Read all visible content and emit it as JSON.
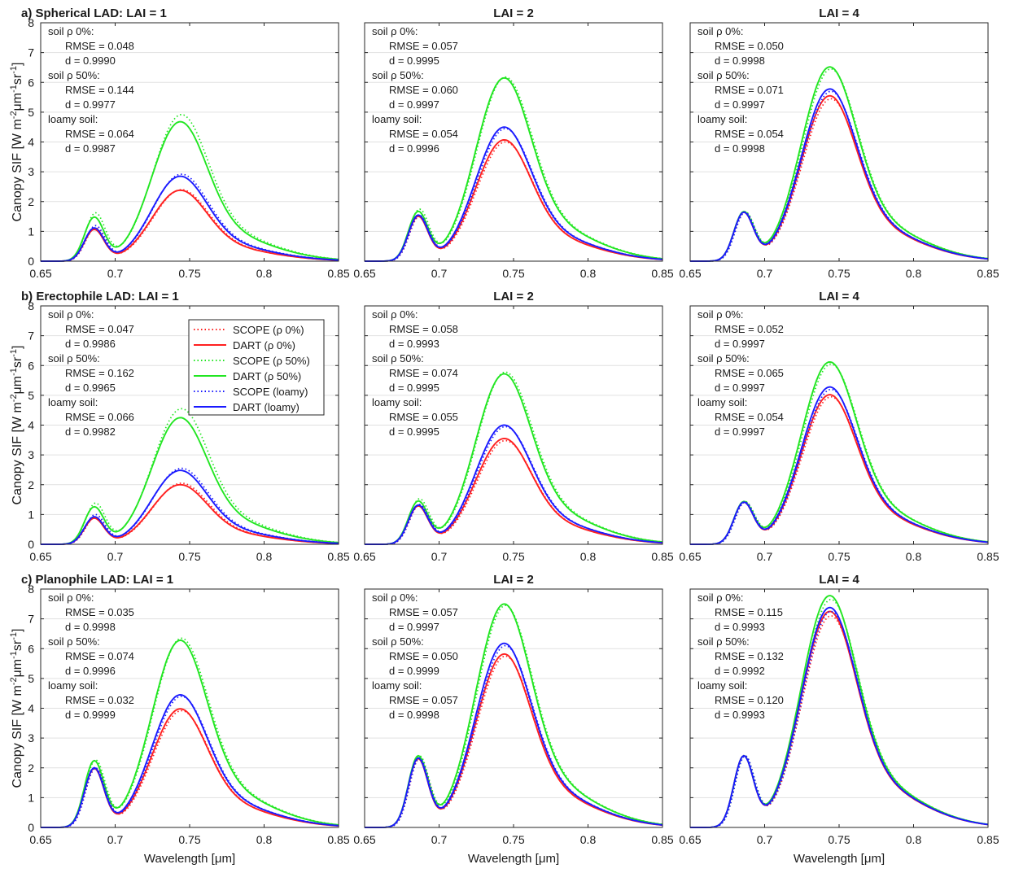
{
  "figure": {
    "x_axis_label": "Wavelength [μm]",
    "y_axis_label_parts": [
      "Canopy SIF [W m",
      "-2",
      "μm",
      "-1",
      "sr",
      "-1",
      "]"
    ],
    "x_ticks": [
      "0.65",
      "0.7",
      "0.75",
      "0.8",
      "0.85"
    ],
    "y_ticks": [
      "0",
      "1",
      "2",
      "3",
      "4",
      "5",
      "6",
      "7",
      "8"
    ],
    "colors": {
      "rho0": "#ff2020",
      "rho50": "#22e622",
      "loamy": "#1a1aff"
    }
  },
  "legend": {
    "entries": [
      {
        "label": "SCOPE (ρ 0%)",
        "series": "rho0",
        "style": "dotted"
      },
      {
        "label": "DART (ρ 0%)",
        "series": "rho0",
        "style": "solid"
      },
      {
        "label": "SCOPE (ρ 50%)",
        "series": "rho50",
        "style": "dotted"
      },
      {
        "label": "DART (ρ 50%)",
        "series": "rho50",
        "style": "solid"
      },
      {
        "label": "SCOPE (loamy)",
        "series": "loamy",
        "style": "dotted"
      },
      {
        "label": "DART (loamy)",
        "series": "loamy",
        "style": "solid"
      }
    ]
  },
  "chart_data": [
    {
      "type": "line",
      "title": "a) Spherical LAD: LAI = 1",
      "xlim": [
        0.65,
        0.85
      ],
      "ylim": [
        0,
        8
      ],
      "stats": [
        {
          "label": "soil ρ 0%:",
          "rmse": "RMSE = 0.048",
          "d": "d = 0.9990"
        },
        {
          "label": "soil ρ 50%:",
          "rmse": "RMSE = 0.144",
          "d": "d = 0.9977"
        },
        {
          "label": "loamy soil:",
          "rmse": "RMSE = 0.064",
          "d": "d = 0.9987"
        }
      ],
      "series": [
        {
          "name": "DART (ρ 0%)",
          "key": "rho0",
          "model": "DART",
          "peak1": 1.12,
          "peak2": 2.38
        },
        {
          "name": "SCOPE (ρ 0%)",
          "key": "rho0",
          "model": "SCOPE",
          "peak1": 1.17,
          "peak2": 2.4
        },
        {
          "name": "DART (ρ 50%)",
          "key": "rho50",
          "model": "DART",
          "peak1": 1.55,
          "peak2": 4.68
        },
        {
          "name": "SCOPE (ρ 50%)",
          "key": "rho50",
          "model": "SCOPE",
          "peak1": 1.7,
          "peak2": 4.92
        },
        {
          "name": "DART (loamy)",
          "key": "loamy",
          "model": "DART",
          "peak1": 1.17,
          "peak2": 2.85
        },
        {
          "name": "SCOPE (loamy)",
          "key": "loamy",
          "model": "SCOPE",
          "peak1": 1.25,
          "peak2": 2.92
        }
      ]
    },
    {
      "type": "line",
      "title": "LAI = 2",
      "xlim": [
        0.65,
        0.85
      ],
      "ylim": [
        0,
        8
      ],
      "stats": [
        {
          "label": "soil ρ 0%:",
          "rmse": "RMSE = 0.057",
          "d": "d = 0.9995"
        },
        {
          "label": "soil ρ 50%:",
          "rmse": "RMSE = 0.060",
          "d": "d = 0.9997"
        },
        {
          "label": "loamy soil:",
          "rmse": "RMSE = 0.054",
          "d": "d = 0.9996"
        }
      ],
      "series": [
        {
          "name": "DART (ρ 0%)",
          "key": "rho0",
          "model": "DART",
          "peak1": 1.58,
          "peak2": 4.07
        },
        {
          "name": "SCOPE (ρ 0%)",
          "key": "rho0",
          "model": "SCOPE",
          "peak1": 1.58,
          "peak2": 4.0
        },
        {
          "name": "DART (ρ 50%)",
          "key": "rho50",
          "model": "DART",
          "peak1": 1.75,
          "peak2": 6.15
        },
        {
          "name": "SCOPE (ρ 50%)",
          "key": "rho50",
          "model": "SCOPE",
          "peak1": 1.83,
          "peak2": 6.18
        },
        {
          "name": "DART (loamy)",
          "key": "loamy",
          "model": "DART",
          "peak1": 1.62,
          "peak2": 4.5
        },
        {
          "name": "SCOPE (loamy)",
          "key": "loamy",
          "model": "SCOPE",
          "peak1": 1.62,
          "peak2": 4.45
        }
      ]
    },
    {
      "type": "line",
      "title": "LAI = 4",
      "xlim": [
        0.65,
        0.85
      ],
      "ylim": [
        0,
        8
      ],
      "stats": [
        {
          "label": "soil ρ 0%:",
          "rmse": "RMSE = 0.050",
          "d": "d = 0.9998"
        },
        {
          "label": "soil ρ 50%:",
          "rmse": "RMSE = 0.071",
          "d": "d = 0.9997"
        },
        {
          "label": "loamy soil:",
          "rmse": "RMSE = 0.054",
          "d": "d = 0.9998"
        }
      ],
      "series": [
        {
          "name": "DART (ρ 0%)",
          "key": "rho0",
          "model": "DART",
          "peak1": 1.72,
          "peak2": 5.55
        },
        {
          "name": "SCOPE (ρ 0%)",
          "key": "rho0",
          "model": "SCOPE",
          "peak1": 1.72,
          "peak2": 5.45
        },
        {
          "name": "DART (ρ 50%)",
          "key": "rho50",
          "model": "DART",
          "peak1": 1.74,
          "peak2": 6.52
        },
        {
          "name": "SCOPE (ρ 50%)",
          "key": "rho50",
          "model": "SCOPE",
          "peak1": 1.74,
          "peak2": 6.45
        },
        {
          "name": "DART (loamy)",
          "key": "loamy",
          "model": "DART",
          "peak1": 1.72,
          "peak2": 5.78
        },
        {
          "name": "SCOPE (loamy)",
          "key": "loamy",
          "model": "SCOPE",
          "peak1": 1.72,
          "peak2": 5.7
        }
      ]
    },
    {
      "type": "line",
      "title": "b) Erectophile LAD: LAI = 1",
      "xlim": [
        0.65,
        0.85
      ],
      "ylim": [
        0,
        8
      ],
      "stats": [
        {
          "label": "soil ρ 0%:",
          "rmse": "RMSE = 0.047",
          "d": "d = 0.9986"
        },
        {
          "label": "soil ρ 50%:",
          "rmse": "RMSE = 0.162",
          "d": "d = 0.9965"
        },
        {
          "label": "loamy soil:",
          "rmse": "RMSE = 0.066",
          "d": "d = 0.9982"
        }
      ],
      "series": [
        {
          "name": "DART (ρ 0%)",
          "key": "rho0",
          "model": "DART",
          "peak1": 0.92,
          "peak2": 2.0
        },
        {
          "name": "SCOPE (ρ 0%)",
          "key": "rho0",
          "model": "SCOPE",
          "peak1": 0.96,
          "peak2": 2.05
        },
        {
          "name": "DART (ρ 50%)",
          "key": "rho50",
          "model": "DART",
          "peak1": 1.32,
          "peak2": 4.25
        },
        {
          "name": "SCOPE (ρ 50%)",
          "key": "rho50",
          "model": "SCOPE",
          "peak1": 1.45,
          "peak2": 4.55
        },
        {
          "name": "DART (loamy)",
          "key": "loamy",
          "model": "DART",
          "peak1": 0.97,
          "peak2": 2.48
        },
        {
          "name": "SCOPE (loamy)",
          "key": "loamy",
          "model": "SCOPE",
          "peak1": 1.05,
          "peak2": 2.55
        }
      ]
    },
    {
      "type": "line",
      "title": "LAI = 2",
      "xlim": [
        0.65,
        0.85
      ],
      "ylim": [
        0,
        8
      ],
      "stats": [
        {
          "label": "soil ρ 0%:",
          "rmse": "RMSE = 0.058",
          "d": "d = 0.9993"
        },
        {
          "label": "soil ρ 50%:",
          "rmse": "RMSE = 0.074",
          "d": "d = 0.9995"
        },
        {
          "label": "loamy soil:",
          "rmse": "RMSE = 0.055",
          "d": "d = 0.9995"
        }
      ],
      "series": [
        {
          "name": "DART (ρ 0%)",
          "key": "rho0",
          "model": "DART",
          "peak1": 1.35,
          "peak2": 3.55
        },
        {
          "name": "SCOPE (ρ 0%)",
          "key": "rho0",
          "model": "SCOPE",
          "peak1": 1.38,
          "peak2": 3.48
        },
        {
          "name": "DART (ρ 50%)",
          "key": "rho50",
          "model": "DART",
          "peak1": 1.52,
          "peak2": 5.72
        },
        {
          "name": "SCOPE (ρ 50%)",
          "key": "rho50",
          "model": "SCOPE",
          "peak1": 1.6,
          "peak2": 5.78
        },
        {
          "name": "DART (loamy)",
          "key": "loamy",
          "model": "DART",
          "peak1": 1.38,
          "peak2": 4.0
        },
        {
          "name": "SCOPE (loamy)",
          "key": "loamy",
          "model": "SCOPE",
          "peak1": 1.4,
          "peak2": 3.95
        }
      ]
    },
    {
      "type": "line",
      "title": "LAI = 4",
      "xlim": [
        0.65,
        0.85
      ],
      "ylim": [
        0,
        8
      ],
      "stats": [
        {
          "label": "soil ρ 0%:",
          "rmse": "RMSE = 0.052",
          "d": "d = 0.9997"
        },
        {
          "label": "soil ρ 50%:",
          "rmse": "RMSE = 0.065",
          "d": "d = 0.9997"
        },
        {
          "label": "loamy soil:",
          "rmse": "RMSE = 0.054",
          "d": "d = 0.9997"
        }
      ],
      "series": [
        {
          "name": "DART (ρ 0%)",
          "key": "rho0",
          "model": "DART",
          "peak1": 1.48,
          "peak2": 5.02
        },
        {
          "name": "SCOPE (ρ 0%)",
          "key": "rho0",
          "model": "SCOPE",
          "peak1": 1.48,
          "peak2": 4.95
        },
        {
          "name": "DART (ρ 50%)",
          "key": "rho50",
          "model": "DART",
          "peak1": 1.5,
          "peak2": 6.12
        },
        {
          "name": "SCOPE (ρ 50%)",
          "key": "rho50",
          "model": "SCOPE",
          "peak1": 1.5,
          "peak2": 6.05
        },
        {
          "name": "DART (loamy)",
          "key": "loamy",
          "model": "DART",
          "peak1": 1.48,
          "peak2": 5.28
        },
        {
          "name": "SCOPE (loamy)",
          "key": "loamy",
          "model": "SCOPE",
          "peak1": 1.48,
          "peak2": 5.2
        }
      ]
    },
    {
      "type": "line",
      "title": "c) Planophile LAD: LAI = 1",
      "xlim": [
        0.65,
        0.85
      ],
      "ylim": [
        0,
        8
      ],
      "stats": [
        {
          "label": "soil ρ 0%:",
          "rmse": "RMSE = 0.035",
          "d": "d = 0.9998"
        },
        {
          "label": "soil ρ 50%:",
          "rmse": "RMSE = 0.074",
          "d": "d = 0.9996"
        },
        {
          "label": "loamy soil:",
          "rmse": "RMSE = 0.032",
          "d": "d = 0.9999"
        }
      ],
      "series": [
        {
          "name": "DART (ρ 0%)",
          "key": "rho0",
          "model": "DART",
          "peak1": 2.08,
          "peak2": 3.98
        },
        {
          "name": "SCOPE (ρ 0%)",
          "key": "rho0",
          "model": "SCOPE",
          "peak1": 2.08,
          "peak2": 3.92
        },
        {
          "name": "DART (ρ 50%)",
          "key": "rho50",
          "model": "DART",
          "peak1": 2.35,
          "peak2": 6.28
        },
        {
          "name": "SCOPE (ρ 50%)",
          "key": "rho50",
          "model": "SCOPE",
          "peak1": 2.38,
          "peak2": 6.35
        },
        {
          "name": "DART (loamy)",
          "key": "loamy",
          "model": "DART",
          "peak1": 2.1,
          "peak2": 4.45
        },
        {
          "name": "SCOPE (loamy)",
          "key": "loamy",
          "model": "SCOPE",
          "peak1": 2.1,
          "peak2": 4.4
        }
      ]
    },
    {
      "type": "line",
      "title": "LAI = 2",
      "xlim": [
        0.65,
        0.85
      ],
      "ylim": [
        0,
        8
      ],
      "stats": [
        {
          "label": "soil ρ 0%:",
          "rmse": "RMSE = 0.057",
          "d": "d = 0.9997"
        },
        {
          "label": "soil ρ 50%:",
          "rmse": "RMSE = 0.050",
          "d": "d = 0.9999"
        },
        {
          "label": "loamy soil:",
          "rmse": "RMSE = 0.057",
          "d": "d = 0.9998"
        }
      ],
      "series": [
        {
          "name": "DART (ρ 0%)",
          "key": "rho0",
          "model": "DART",
          "peak1": 2.42,
          "peak2": 5.82
        },
        {
          "name": "SCOPE (ρ 0%)",
          "key": "rho0",
          "model": "SCOPE",
          "peak1": 2.42,
          "peak2": 5.75
        },
        {
          "name": "DART (ρ 50%)",
          "key": "rho50",
          "model": "DART",
          "peak1": 2.52,
          "peak2": 7.5
        },
        {
          "name": "SCOPE (ρ 50%)",
          "key": "rho50",
          "model": "SCOPE",
          "peak1": 2.52,
          "peak2": 7.45
        },
        {
          "name": "DART (loamy)",
          "key": "loamy",
          "model": "DART",
          "peak1": 2.44,
          "peak2": 6.18
        },
        {
          "name": "SCOPE (loamy)",
          "key": "loamy",
          "model": "SCOPE",
          "peak1": 2.44,
          "peak2": 6.1
        }
      ]
    },
    {
      "type": "line",
      "title": "LAI = 4",
      "xlim": [
        0.65,
        0.85
      ],
      "ylim": [
        0,
        8
      ],
      "stats": [
        {
          "label": "soil ρ 0%:",
          "rmse": "RMSE = 0.115",
          "d": "d = 0.9993"
        },
        {
          "label": "soil ρ 50%:",
          "rmse": "RMSE = 0.132",
          "d": "d = 0.9992"
        },
        {
          "label": "loamy soil:",
          "rmse": "RMSE = 0.120",
          "d": "d = 0.9993"
        }
      ],
      "series": [
        {
          "name": "DART (ρ 0%)",
          "key": "rho0",
          "model": "DART",
          "peak1": 2.52,
          "peak2": 7.25
        },
        {
          "name": "SCOPE (ρ 0%)",
          "key": "rho0",
          "model": "SCOPE",
          "peak1": 2.52,
          "peak2": 7.1
        },
        {
          "name": "DART (ρ 50%)",
          "key": "rho50",
          "model": "DART",
          "peak1": 2.52,
          "peak2": 7.78
        },
        {
          "name": "SCOPE (ρ 50%)",
          "key": "rho50",
          "model": "SCOPE",
          "peak1": 2.52,
          "peak2": 7.65
        },
        {
          "name": "DART (loamy)",
          "key": "loamy",
          "model": "DART",
          "peak1": 2.52,
          "peak2": 7.38
        },
        {
          "name": "SCOPE (loamy)",
          "key": "loamy",
          "model": "SCOPE",
          "peak1": 2.52,
          "peak2": 7.25
        }
      ]
    }
  ]
}
